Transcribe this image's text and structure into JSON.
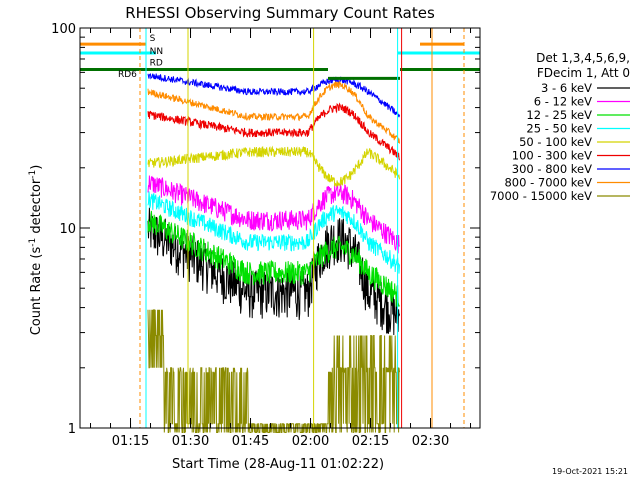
{
  "chart_data": {
    "type": "line",
    "title": "RHESSI Observing Summary Count Rates",
    "xlabel": "Start Time (28-Aug-11 01:02:22)",
    "ylabel_main": "Count Rate (s",
    "ylabel_sup": "-1",
    "ylabel_tail": " detector",
    "ylabel_sup2": "-1",
    "ylabel_close": ")",
    "x_ticks": [
      "01:15",
      "01:30",
      "01:45",
      "02:00",
      "02:15",
      "02:30"
    ],
    "x_tick_minutes": [
      12.63,
      27.63,
      42.63,
      57.63,
      72.63,
      87.63
    ],
    "xlim_minutes": [
      0,
      100
    ],
    "y_scale": "log",
    "ylim": [
      1,
      100
    ],
    "y_tick_labels": [
      "100",
      "10",
      "1"
    ],
    "y_tick_values": [
      100,
      10,
      1
    ],
    "legend": {
      "header1": "Det 1,3,4,5,6,9,",
      "header2": "FDecim 1, Att 0",
      "entries": [
        {
          "label": "3 - 6 keV",
          "color": "#000000"
        },
        {
          "label": "6 - 12 keV",
          "color": "#ff00ff"
        },
        {
          "label": "12 - 25 keV",
          "color": "#00e000"
        },
        {
          "label": "25 - 50 keV",
          "color": "#00ffff"
        },
        {
          "label": "50 - 100 keV",
          "color": "#d4d400"
        },
        {
          "label": "100 - 300 keV",
          "color": "#ee0000"
        },
        {
          "label": "300 - 800 keV",
          "color": "#0000ff"
        },
        {
          "label": "800 - 7000 keV",
          "color": "#ff8c00"
        },
        {
          "label": "7000 - 15000 keV",
          "color": "#8b8b00"
        }
      ]
    },
    "flags": [
      {
        "label": "S",
        "color": "#ff8c00"
      },
      {
        "label": "NN",
        "color": "#00ffff"
      },
      {
        "label": "RD",
        "color": "#8b8b00"
      },
      {
        "label": "RD6",
        "color": "#007000"
      }
    ],
    "series_levels_minutes": [
      17,
      27,
      42,
      57,
      62,
      72,
      80,
      85
    ],
    "timestamp": "19-Oct-2021 15:21"
  }
}
